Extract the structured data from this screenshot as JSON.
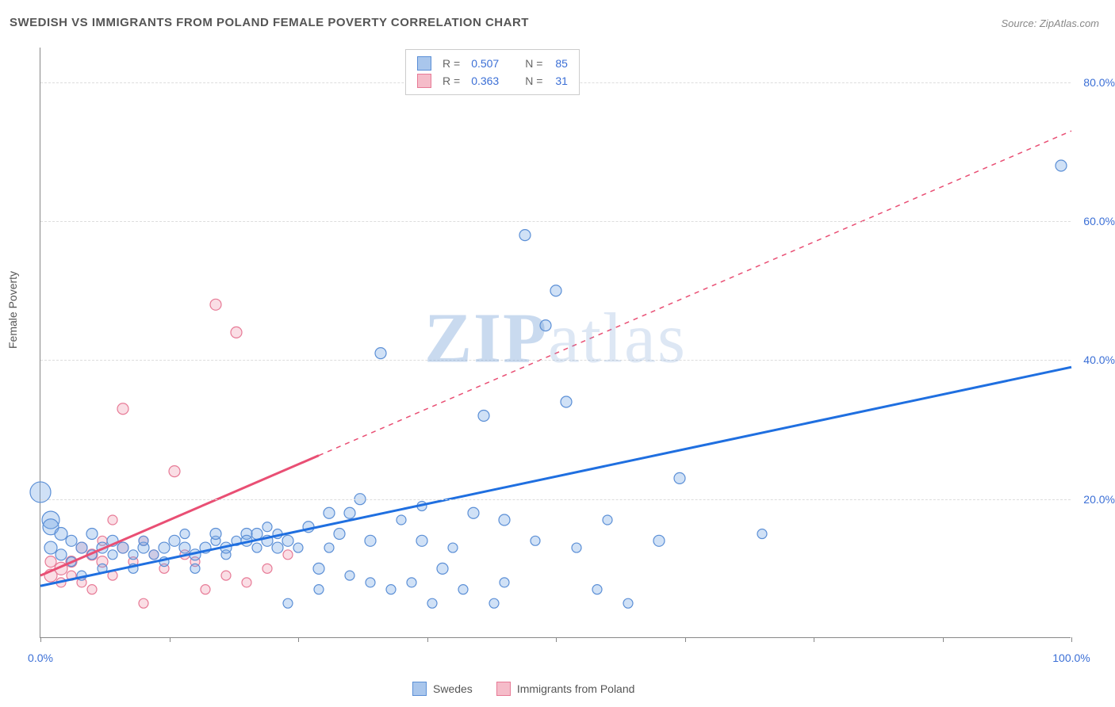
{
  "title": "SWEDISH VS IMMIGRANTS FROM POLAND FEMALE POVERTY CORRELATION CHART",
  "source": "Source: ZipAtlas.com",
  "ylabel": "Female Poverty",
  "watermark": "ZIPatlas",
  "chart": {
    "type": "scatter",
    "xlim": [
      0,
      100
    ],
    "ylim": [
      0,
      85
    ],
    "background_color": "#ffffff",
    "grid_color": "#dddddd",
    "axis_color": "#888888",
    "tick_font_color": "#3b6fd6",
    "tick_fontsize": 14,
    "yticks": [
      20,
      40,
      60,
      80
    ],
    "ytick_labels": [
      "20.0%",
      "40.0%",
      "60.0%",
      "80.0%"
    ],
    "xticks": [
      0,
      50,
      100
    ],
    "xtick_labels": [
      "0.0%",
      "",
      "100.0%"
    ],
    "xtick_marks": [
      0,
      12.5,
      25,
      37.5,
      50,
      62.5,
      75,
      87.5,
      100
    ]
  },
  "legend_top": {
    "rows": [
      {
        "swatch_fill": "#a9c6ec",
        "swatch_border": "#5b8fd6",
        "r": "0.507",
        "n": "85"
      },
      {
        "swatch_fill": "#f5bcc9",
        "swatch_border": "#e77a96",
        "r": "0.363",
        "n": "31"
      }
    ],
    "r_label": "R =",
    "n_label": "N ="
  },
  "legend_bottom": {
    "items": [
      {
        "swatch_fill": "#a9c6ec",
        "swatch_border": "#5b8fd6",
        "label": "Swedes"
      },
      {
        "swatch_fill": "#f5bcc9",
        "swatch_border": "#e77a96",
        "label": "Immigrants from Poland"
      }
    ]
  },
  "series": {
    "swedes": {
      "marker_fill": "rgba(120,170,230,0.35)",
      "marker_stroke": "#5b8fd6",
      "marker_stroke_width": 1.2,
      "trend_color": "#1f6fe0",
      "trend_width": 3,
      "trend_solid_xmax": 100,
      "trend": {
        "x1": 0,
        "y1": 7.5,
        "x2": 100,
        "y2": 39
      },
      "points": [
        {
          "x": 0,
          "y": 21,
          "r": 13
        },
        {
          "x": 1,
          "y": 17,
          "r": 11
        },
        {
          "x": 1,
          "y": 16,
          "r": 10
        },
        {
          "x": 1,
          "y": 13,
          "r": 8
        },
        {
          "x": 2,
          "y": 15,
          "r": 8
        },
        {
          "x": 2,
          "y": 12,
          "r": 7
        },
        {
          "x": 3,
          "y": 14,
          "r": 7
        },
        {
          "x": 3,
          "y": 11,
          "r": 6
        },
        {
          "x": 4,
          "y": 13,
          "r": 7
        },
        {
          "x": 4,
          "y": 9,
          "r": 6
        },
        {
          "x": 5,
          "y": 15,
          "r": 7
        },
        {
          "x": 5,
          "y": 12,
          "r": 6
        },
        {
          "x": 6,
          "y": 13,
          "r": 7
        },
        {
          "x": 6,
          "y": 10,
          "r": 6
        },
        {
          "x": 7,
          "y": 14,
          "r": 7
        },
        {
          "x": 7,
          "y": 12,
          "r": 6
        },
        {
          "x": 8,
          "y": 13,
          "r": 7
        },
        {
          "x": 9,
          "y": 12,
          "r": 6
        },
        {
          "x": 9,
          "y": 10,
          "r": 6
        },
        {
          "x": 10,
          "y": 13,
          "r": 7
        },
        {
          "x": 10,
          "y": 14,
          "r": 6
        },
        {
          "x": 11,
          "y": 12,
          "r": 6
        },
        {
          "x": 12,
          "y": 13,
          "r": 7
        },
        {
          "x": 12,
          "y": 11,
          "r": 6
        },
        {
          "x": 13,
          "y": 14,
          "r": 7
        },
        {
          "x": 14,
          "y": 13,
          "r": 7
        },
        {
          "x": 14,
          "y": 15,
          "r": 6
        },
        {
          "x": 15,
          "y": 12,
          "r": 7
        },
        {
          "x": 15,
          "y": 10,
          "r": 6
        },
        {
          "x": 16,
          "y": 13,
          "r": 7
        },
        {
          "x": 17,
          "y": 14,
          "r": 6
        },
        {
          "x": 17,
          "y": 15,
          "r": 7
        },
        {
          "x": 18,
          "y": 12,
          "r": 6
        },
        {
          "x": 18,
          "y": 13,
          "r": 7
        },
        {
          "x": 19,
          "y": 14,
          "r": 6
        },
        {
          "x": 20,
          "y": 15,
          "r": 7
        },
        {
          "x": 20,
          "y": 14,
          "r": 7
        },
        {
          "x": 21,
          "y": 13,
          "r": 6
        },
        {
          "x": 21,
          "y": 15,
          "r": 7
        },
        {
          "x": 22,
          "y": 14,
          "r": 7
        },
        {
          "x": 22,
          "y": 16,
          "r": 6
        },
        {
          "x": 23,
          "y": 13,
          "r": 7
        },
        {
          "x": 23,
          "y": 15,
          "r": 6
        },
        {
          "x": 24,
          "y": 14,
          "r": 7
        },
        {
          "x": 24,
          "y": 5,
          "r": 6
        },
        {
          "x": 25,
          "y": 13,
          "r": 6
        },
        {
          "x": 26,
          "y": 16,
          "r": 7
        },
        {
          "x": 27,
          "y": 10,
          "r": 7
        },
        {
          "x": 27,
          "y": 7,
          "r": 6
        },
        {
          "x": 28,
          "y": 18,
          "r": 7
        },
        {
          "x": 28,
          "y": 13,
          "r": 6
        },
        {
          "x": 29,
          "y": 15,
          "r": 7
        },
        {
          "x": 30,
          "y": 18,
          "r": 7
        },
        {
          "x": 30,
          "y": 9,
          "r": 6
        },
        {
          "x": 31,
          "y": 20,
          "r": 7
        },
        {
          "x": 32,
          "y": 8,
          "r": 6
        },
        {
          "x": 32,
          "y": 14,
          "r": 7
        },
        {
          "x": 33,
          "y": 41,
          "r": 7
        },
        {
          "x": 34,
          "y": 7,
          "r": 6
        },
        {
          "x": 35,
          "y": 17,
          "r": 6
        },
        {
          "x": 36,
          "y": 8,
          "r": 6
        },
        {
          "x": 37,
          "y": 14,
          "r": 7
        },
        {
          "x": 37,
          "y": 19,
          "r": 6
        },
        {
          "x": 38,
          "y": 5,
          "r": 6
        },
        {
          "x": 39,
          "y": 10,
          "r": 7
        },
        {
          "x": 40,
          "y": 13,
          "r": 6
        },
        {
          "x": 41,
          "y": 7,
          "r": 6
        },
        {
          "x": 42,
          "y": 18,
          "r": 7
        },
        {
          "x": 43,
          "y": 32,
          "r": 7
        },
        {
          "x": 44,
          "y": 5,
          "r": 6
        },
        {
          "x": 45,
          "y": 17,
          "r": 7
        },
        {
          "x": 45,
          "y": 8,
          "r": 6
        },
        {
          "x": 47,
          "y": 58,
          "r": 7
        },
        {
          "x": 48,
          "y": 14,
          "r": 6
        },
        {
          "x": 49,
          "y": 45,
          "r": 7
        },
        {
          "x": 50,
          "y": 50,
          "r": 7
        },
        {
          "x": 51,
          "y": 34,
          "r": 7
        },
        {
          "x": 52,
          "y": 13,
          "r": 6
        },
        {
          "x": 54,
          "y": 7,
          "r": 6
        },
        {
          "x": 55,
          "y": 17,
          "r": 6
        },
        {
          "x": 57,
          "y": 5,
          "r": 6
        },
        {
          "x": 60,
          "y": 14,
          "r": 7
        },
        {
          "x": 62,
          "y": 23,
          "r": 7
        },
        {
          "x": 70,
          "y": 15,
          "r": 6
        },
        {
          "x": 99,
          "y": 68,
          "r": 7
        }
      ]
    },
    "poland": {
      "marker_fill": "rgba(240,160,180,0.35)",
      "marker_stroke": "#e77a96",
      "marker_stroke_width": 1.2,
      "trend_color": "#e94f74",
      "trend_width": 3,
      "trend_solid_xmax": 27,
      "trend": {
        "x1": 0,
        "y1": 9,
        "x2": 100,
        "y2": 73
      },
      "points": [
        {
          "x": 1,
          "y": 9,
          "r": 8
        },
        {
          "x": 1,
          "y": 11,
          "r": 7
        },
        {
          "x": 2,
          "y": 10,
          "r": 8
        },
        {
          "x": 2,
          "y": 8,
          "r": 6
        },
        {
          "x": 3,
          "y": 11,
          "r": 7
        },
        {
          "x": 3,
          "y": 9,
          "r": 6
        },
        {
          "x": 4,
          "y": 13,
          "r": 7
        },
        {
          "x": 4,
          "y": 8,
          "r": 6
        },
        {
          "x": 5,
          "y": 12,
          "r": 7
        },
        {
          "x": 5,
          "y": 7,
          "r": 6
        },
        {
          "x": 6,
          "y": 14,
          "r": 6
        },
        {
          "x": 6,
          "y": 11,
          "r": 7
        },
        {
          "x": 7,
          "y": 17,
          "r": 6
        },
        {
          "x": 7,
          "y": 9,
          "r": 6
        },
        {
          "x": 8,
          "y": 13,
          "r": 7
        },
        {
          "x": 8,
          "y": 33,
          "r": 7
        },
        {
          "x": 9,
          "y": 11,
          "r": 6
        },
        {
          "x": 10,
          "y": 5,
          "r": 6
        },
        {
          "x": 10,
          "y": 14,
          "r": 6
        },
        {
          "x": 11,
          "y": 12,
          "r": 6
        },
        {
          "x": 12,
          "y": 10,
          "r": 6
        },
        {
          "x": 13,
          "y": 24,
          "r": 7
        },
        {
          "x": 14,
          "y": 12,
          "r": 6
        },
        {
          "x": 15,
          "y": 11,
          "r": 6
        },
        {
          "x": 16,
          "y": 7,
          "r": 6
        },
        {
          "x": 17,
          "y": 48,
          "r": 7
        },
        {
          "x": 18,
          "y": 9,
          "r": 6
        },
        {
          "x": 19,
          "y": 44,
          "r": 7
        },
        {
          "x": 20,
          "y": 8,
          "r": 6
        },
        {
          "x": 22,
          "y": 10,
          "r": 6
        },
        {
          "x": 24,
          "y": 12,
          "r": 6
        }
      ]
    }
  }
}
